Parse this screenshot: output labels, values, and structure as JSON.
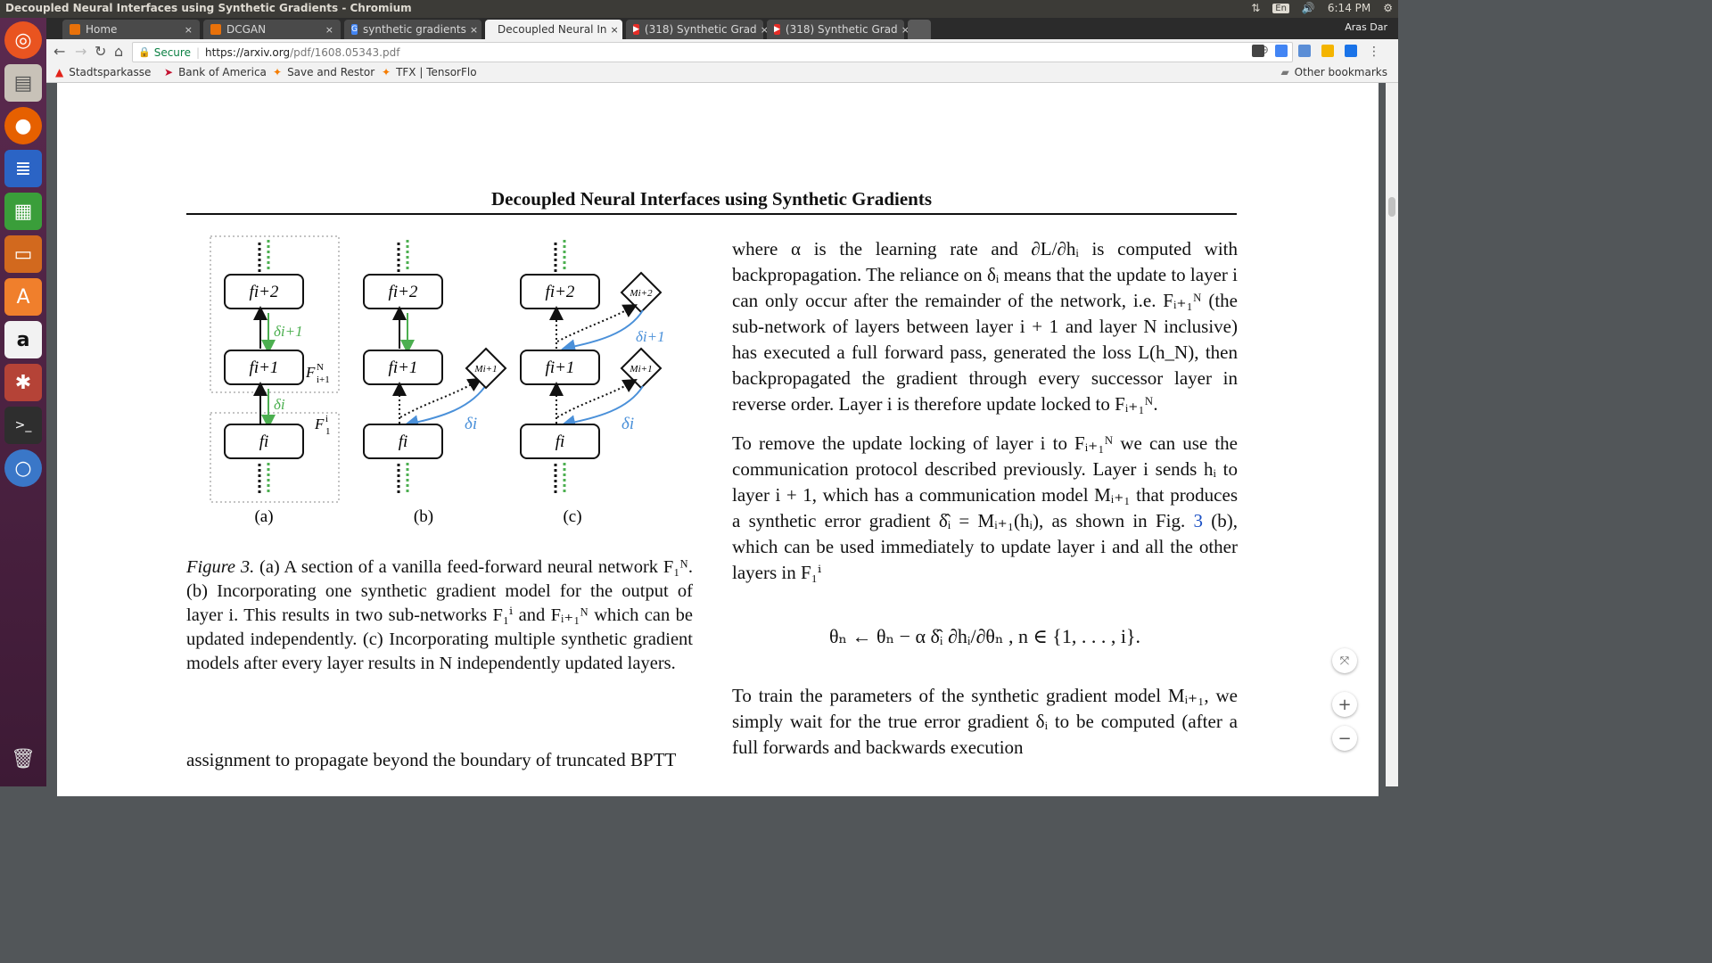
{
  "topbar": {
    "window_title": "Decoupled Neural Interfaces using Synthetic Gradients - Chromium",
    "language": "En",
    "time": "6:14 PM"
  },
  "tabs": [
    {
      "label": "Home",
      "icon_color": "#e8710a"
    },
    {
      "label": "DCGAN",
      "icon_color": "#e8710a"
    },
    {
      "label": "synthetic gradients",
      "icon_color": "#4285f4"
    },
    {
      "label": "Decoupled Neural In",
      "icon_color": "#8bc34a"
    },
    {
      "label": "(318) Synthetic Grad",
      "icon_color": "#e52d27"
    },
    {
      "label": "(318) Synthetic Grad",
      "icon_color": "#e52d27"
    }
  ],
  "profile_name": "Aras Dar",
  "address": {
    "secure_label": "Secure",
    "url_host": "https://arxiv.org",
    "url_path": "/pdf/1608.05343.pdf"
  },
  "bookmarks": [
    {
      "label": "Stadtsparkasse",
      "color": "#e2231a"
    },
    {
      "label": "Bank of America",
      "color": "#c41230"
    },
    {
      "label": "Save and Restor",
      "color": "#f57c00"
    },
    {
      "label": "TFX | TensorFlo",
      "color": "#f57c00"
    }
  ],
  "other_bookmarks": "Other bookmarks",
  "paper": {
    "header": "Decoupled Neural Interfaces using Synthetic Gradients",
    "figure_labels": {
      "panel_a": "(a)",
      "panel_b": "(b)",
      "panel_c": "(c)",
      "f_i2": "fi+2",
      "f_i1": "fi+1",
      "f_i": "fi",
      "m_i2": "Mi+2",
      "m_i1": "Mi+1",
      "delta_i1": "δi+1",
      "delta_i": "δi",
      "fam_upper": "F",
      "fam_upper_sub": "i+1",
      "fam_upper_sup": "N",
      "fam_lower": "F",
      "fam_lower_sub": "1",
      "fam_lower_sup": "i"
    },
    "caption_lead": "Figure 3.",
    "caption_text": "(a) A section of a vanilla feed-forward neural network F₁ᴺ. (b) Incorporating one synthetic gradient model for the output of layer i. This results in two sub-networks F₁ⁱ and Fᵢ₊₁ᴺ which can be updated independently. (c) Incorporating multiple synthetic gradient models after every layer results in N independently updated layers.",
    "left_tail": "assignment to propagate beyond the boundary of truncated BPTT",
    "para1": "where α is the learning rate and ∂L/∂hᵢ is computed with backpropagation. The reliance on δᵢ means that the update to layer i can only occur after the remainder of the network, i.e. Fᵢ₊₁ᴺ (the sub-network of layers between layer i + 1 and layer N inclusive) has executed a full forward pass, generated the loss L(h_N), then backpropagated the gradient through every successor layer in reverse order. Layer i is therefore update locked to Fᵢ₊₁ᴺ.",
    "para2_a": "To remove the update locking of layer i to Fᵢ₊₁ᴺ we can use the communication protocol described previously. Layer i sends hᵢ to layer i + 1, which has a communication model Mᵢ₊₁ that produces a synthetic error gradient δ̂ᵢ = Mᵢ₊₁(hᵢ), as shown in Fig. ",
    "para2_link": "3",
    "para2_b": " (b), which can be used immediately to update layer i and all the other layers in F₁ⁱ",
    "equation": "θₙ ← θₙ − α δ̂ᵢ ∂hᵢ/∂θₙ ,   n ∈ {1, . . . , i}.",
    "para3": "To train the parameters of the synthetic gradient model Mᵢ₊₁, we simply wait for the true error gradient δᵢ to be computed (after a full forwards and backwards execution"
  },
  "colors": {
    "green": "#4caf50",
    "blue": "#4a90d9",
    "launcher": "#5b2a4f"
  }
}
